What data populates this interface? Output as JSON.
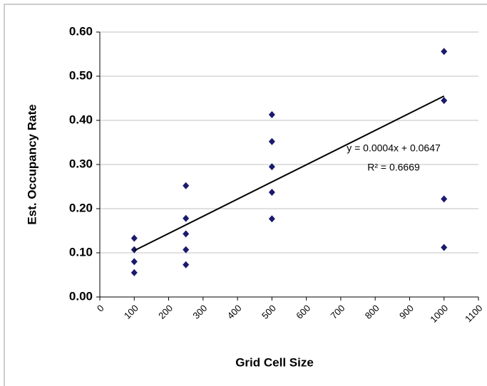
{
  "chart_data": {
    "type": "scatter",
    "xlabel": "Grid Cell Size",
    "ylabel": "Est. Occupancy Rate",
    "x": [
      100,
      100,
      100,
      100,
      250,
      250,
      250,
      250,
      250,
      500,
      500,
      500,
      500,
      500,
      1000,
      1000,
      1000,
      1000
    ],
    "values": [
      0.133,
      0.107,
      0.08,
      0.055,
      0.252,
      0.178,
      0.143,
      0.107,
      0.073,
      0.413,
      0.352,
      0.295,
      0.237,
      0.177,
      0.556,
      0.445,
      0.222,
      0.112
    ],
    "color": "#1a1a6e",
    "trendline": {
      "x": [
        100,
        1000
      ],
      "values": [
        0.105,
        0.455
      ],
      "color": "#000000"
    },
    "annotations": [
      "y = 0.0004x + 0.0647",
      "R² = 0.6669"
    ],
    "xlim": [
      0,
      1100
    ],
    "xticks": [
      0,
      100,
      200,
      300,
      400,
      500,
      600,
      700,
      800,
      900,
      1000,
      1100
    ],
    "ylim": [
      0,
      0.6
    ],
    "yticks": [
      {
        "value": 0,
        "label": "0.00"
      },
      {
        "value": 0.1,
        "label": "0.10"
      },
      {
        "value": 0.2,
        "label": "0.20"
      },
      {
        "value": 0.3,
        "label": "0.30"
      },
      {
        "value": 0.4,
        "label": "0.40"
      },
      {
        "value": 0.5,
        "label": "0.50"
      },
      {
        "value": 0.6,
        "label": "0.60"
      }
    ],
    "grid": true
  }
}
